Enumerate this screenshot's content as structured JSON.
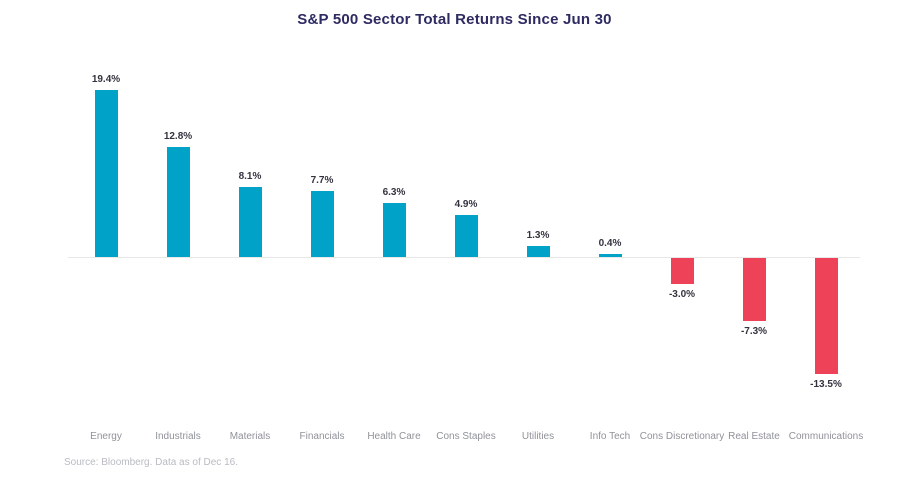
{
  "title": "S&P 500 Sector Total Returns Since Jun 30",
  "source_note": "Source: Bloomberg. Data as of Dec 16.",
  "chart_data": {
    "type": "bar",
    "title": "S&P 500 Sector Total Returns Since Jun 30",
    "categories": [
      "Energy",
      "Industrials",
      "Materials",
      "Financials",
      "Health Care",
      "Cons Staples",
      "Utilities",
      "Info Tech",
      "Cons Discretionary",
      "Real Estate",
      "Communications"
    ],
    "values": [
      19.4,
      12.8,
      8.1,
      7.7,
      6.3,
      4.9,
      1.3,
      0.4,
      -3.0,
      -7.3,
      -13.5
    ],
    "value_labels": [
      "19.4%",
      "12.8%",
      "8.1%",
      "7.7%",
      "6.3%",
      "4.9%",
      "1.3%",
      "0.4%",
      "-3.0%",
      "-7.3%",
      "-13.5%"
    ],
    "xlabel": "",
    "ylabel": "",
    "ylim": [
      -15,
      21
    ],
    "grid": false,
    "legend": "none",
    "colors": {
      "positive_bar": "#00a3c7",
      "negative_bar": "#ee4258",
      "title": "#2d2b62",
      "value_label": "#33333f",
      "category_label": "#8f9299",
      "source_text": "#b9bbc3",
      "baseline": "#e8e8e8"
    }
  }
}
